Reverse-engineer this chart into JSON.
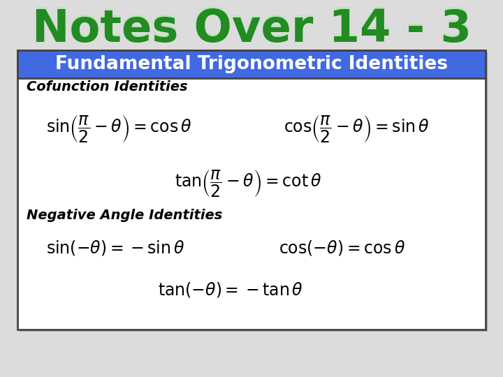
{
  "title": "Notes Over 14 - 3",
  "header_text": "Fundamental Trigonometric Identities",
  "header_bg": "#4169E1",
  "header_text_color": "#FFFFFF",
  "box_bg": "#FFFFFF",
  "section1_label": "Cofunction Identities",
  "section2_label": "Negative Angle Identities",
  "bg_color": "#DCDCDC",
  "title_color": "#228B22",
  "title_highlight": "#90EE90",
  "box_border": "#444444",
  "title_fontsize": 46,
  "header_fontsize": 19,
  "section_fontsize": 14,
  "formula_fontsize": 17
}
